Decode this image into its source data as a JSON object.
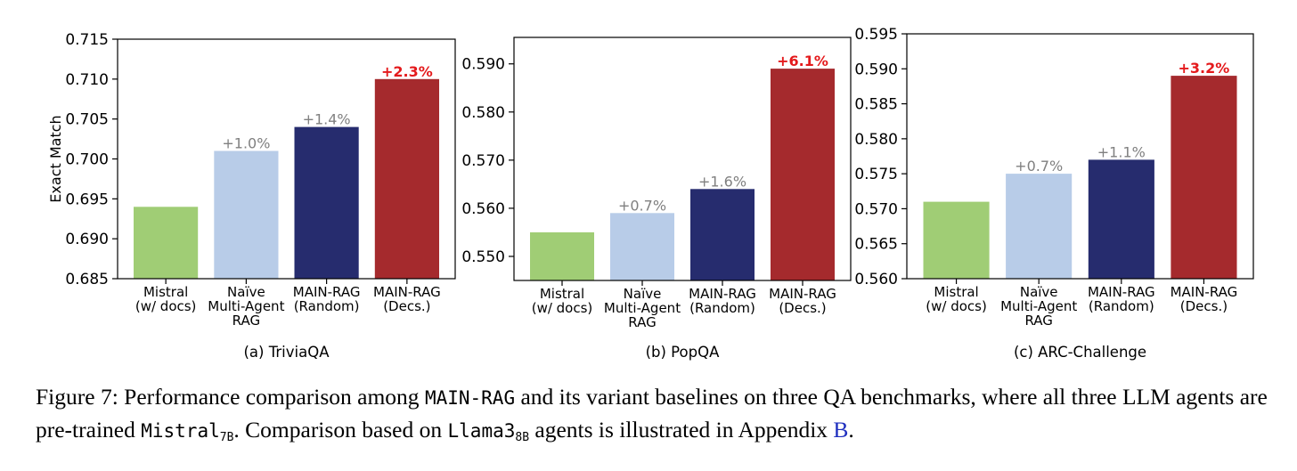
{
  "caption": {
    "part1": "Figure 7: Performance comparison among ",
    "code1": "MAIN-RAG",
    "part2": " and its variant baselines on three QA benchmarks, where all three LLM agents are pre-trained ",
    "code2": "Mistral",
    "sub2": "7B",
    "part3": ". Comparison based on ",
    "code3": "Llama3",
    "sub3": "8B",
    "part4": " agents is illustrated in Appendix ",
    "link": "B",
    "part5": "."
  },
  "colors": [
    "#a0cd75",
    "#b8cce8",
    "#262c6e",
    "#a52a2d"
  ],
  "annotation_colors": {
    "normal": "#808080",
    "highlight": "#e41a1c"
  },
  "chart_data": [
    {
      "type": "bar",
      "subtitle": "(a) TriviaQA",
      "ylabel": "Exact Match",
      "categories": [
        [
          "Mistral",
          "(w/ docs)"
        ],
        [
          "Naïve",
          "Multi-Agent",
          "RAG"
        ],
        [
          "MAIN-RAG",
          "(Random)"
        ],
        [
          "MAIN-RAG",
          "(Decs.)"
        ]
      ],
      "values": [
        0.694,
        0.701,
        0.704,
        0.71
      ],
      "annotations": [
        "",
        "+1.0%",
        "+1.4%",
        "+2.3%"
      ],
      "ylim": [
        0.685,
        0.715
      ],
      "yticks": [
        0.685,
        0.69,
        0.695,
        0.7,
        0.705,
        0.71,
        0.715
      ],
      "ytick_labels": [
        "0.685",
        "0.690",
        "0.695",
        "0.700",
        "0.705",
        "0.710",
        "0.715"
      ],
      "grid": false
    },
    {
      "type": "bar",
      "subtitle": "(b) PopQA",
      "ylabel": "",
      "categories": [
        [
          "Mistral",
          "(w/ docs)"
        ],
        [
          "Naïve",
          "Multi-Agent",
          "RAG"
        ],
        [
          "MAIN-RAG",
          "(Random)"
        ],
        [
          "MAIN-RAG",
          "(Decs.)"
        ]
      ],
      "values": [
        0.555,
        0.559,
        0.564,
        0.589
      ],
      "annotations": [
        "",
        "+0.7%",
        "+1.6%",
        "+6.1%"
      ],
      "ylim": [
        0.545,
        0.5955
      ],
      "yticks": [
        0.55,
        0.56,
        0.57,
        0.58,
        0.59
      ],
      "ytick_labels": [
        "0.550",
        "0.560",
        "0.570",
        "0.580",
        "0.590"
      ],
      "grid": false
    },
    {
      "type": "bar",
      "subtitle": "(c) ARC-Challenge",
      "ylabel": "",
      "categories": [
        [
          "Mistral",
          "(w/ docs)"
        ],
        [
          "Naïve",
          "Multi-Agent",
          "RAG"
        ],
        [
          "MAIN-RAG",
          "(Random)"
        ],
        [
          "MAIN-RAG",
          "(Decs.)"
        ]
      ],
      "values": [
        0.571,
        0.575,
        0.577,
        0.589
      ],
      "annotations": [
        "",
        "+0.7%",
        "+1.1%",
        "+3.2%"
      ],
      "ylim": [
        0.56,
        0.595
      ],
      "yticks": [
        0.56,
        0.565,
        0.57,
        0.575,
        0.58,
        0.585,
        0.59,
        0.595
      ],
      "ytick_labels": [
        "0.560",
        "0.565",
        "0.570",
        "0.575",
        "0.580",
        "0.585",
        "0.590",
        "0.595"
      ],
      "grid": false
    }
  ]
}
